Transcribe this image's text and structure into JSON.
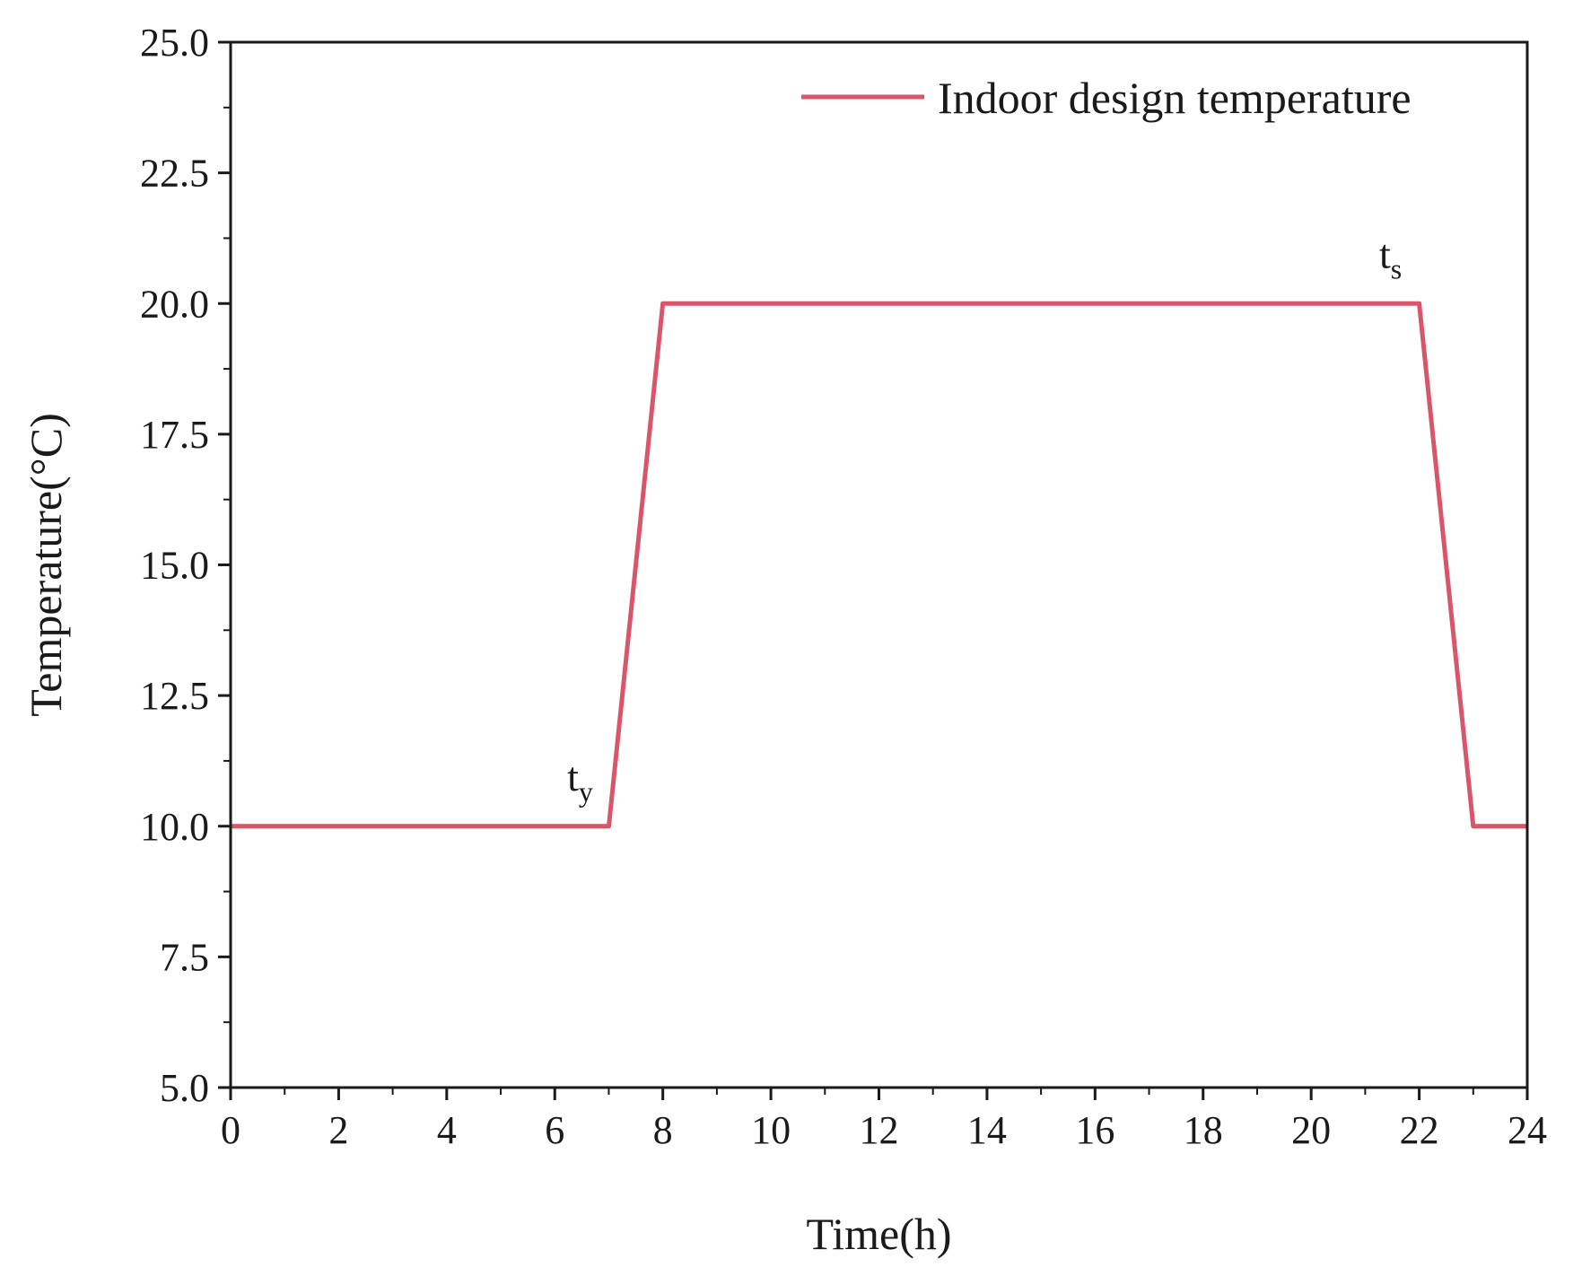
{
  "chart_data": {
    "type": "line",
    "xlabel": "Time(h)",
    "ylabel": "Temperature(°C)",
    "xlim": [
      0,
      24
    ],
    "ylim": [
      5,
      25
    ],
    "xticks": [
      0,
      2,
      4,
      6,
      8,
      10,
      12,
      14,
      16,
      18,
      20,
      22,
      24
    ],
    "yticks": [
      5.0,
      7.5,
      10.0,
      12.5,
      15.0,
      17.5,
      20.0,
      22.5,
      25.0
    ],
    "xtick_labels": [
      "0",
      "2",
      "4",
      "6",
      "8",
      "10",
      "12",
      "14",
      "16",
      "18",
      "20",
      "22",
      "24"
    ],
    "ytick_labels": [
      "5.0",
      "7.5",
      "10.0",
      "12.5",
      "15.0",
      "17.5",
      "20.0",
      "22.5",
      "25.0"
    ],
    "grid": false,
    "legend_position": "top-right",
    "series": [
      {
        "name": "Indoor design temperature",
        "color": "#d9566a",
        "x": [
          0,
          7,
          8,
          22,
          23,
          24
        ],
        "y": [
          10,
          10,
          20,
          20,
          10,
          10
        ]
      }
    ],
    "annotations": [
      {
        "main": "t",
        "sub": "y",
        "x": 7,
        "y": 10
      },
      {
        "main": "t",
        "sub": "s",
        "x": 22,
        "y": 20
      }
    ]
  }
}
